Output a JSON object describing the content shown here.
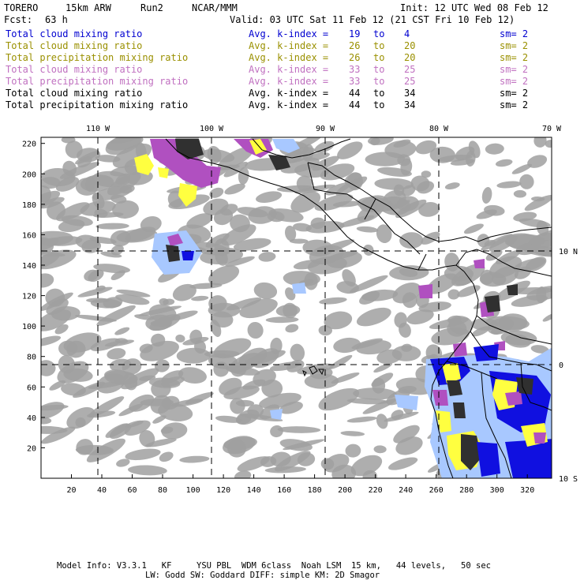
{
  "header": {
    "model": "TORERO",
    "resolution": "15km ARW",
    "run": "Run2",
    "org": "NCAR/MMM",
    "init": "Init: 12 UTC Wed 08 Feb 12",
    "fcst_label": "Fcst:",
    "fcst_value": "63 h",
    "valid": "Valid: 03 UTC Sat 11 Feb 12 (21 CST Fri 10 Feb 12)"
  },
  "legend": [
    {
      "field": "Total cloud mixing ratio",
      "kindex": "Avg. k-index =",
      "from": "19",
      "to_word": "to",
      "to": "4",
      "sm": "sm= 2",
      "color": "#0000d0"
    },
    {
      "field": "Total cloud mixing ratio",
      "kindex": "Avg. k-index =",
      "from": "26",
      "to_word": "to",
      "to": "20",
      "sm": "sm= 2",
      "color": "#9a9000"
    },
    {
      "field": "Total precipitation mixing ratio",
      "kindex": "Avg. k-index =",
      "from": "26",
      "to_word": "to",
      "to": "20",
      "sm": "sm= 2",
      "color": "#9a9000"
    },
    {
      "field": "Total cloud mixing ratio",
      "kindex": "Avg. k-index =",
      "from": "33",
      "to_word": "to",
      "to": "25",
      "sm": "sm= 2",
      "color": "#c070c0"
    },
    {
      "field": "Total precipitation mixing ratio",
      "kindex": "Avg. k-index =",
      "from": "33",
      "to_word": "to",
      "to": "25",
      "sm": "sm= 2",
      "color": "#c070c0"
    },
    {
      "field": "Total cloud mixing ratio",
      "kindex": "Avg. k-index =",
      "from": "44",
      "to_word": "to",
      "to": "34",
      "sm": "sm= 2",
      "color": "#000000"
    },
    {
      "field": "Total precipitation mixing ratio",
      "kindex": "Avg. k-index =",
      "from": "44",
      "to_word": "to",
      "to": "34",
      "sm": "sm= 2",
      "color": "#000000"
    }
  ],
  "map": {
    "lon_labels": [
      "110 W",
      "100 W",
      "90 W",
      "80 W",
      "70 W"
    ],
    "lat_labels": [
      "10 N",
      "0",
      "10 S"
    ],
    "x_ticks": [
      "20",
      "40",
      "60",
      "80",
      "100",
      "120",
      "140",
      "160",
      "180",
      "200",
      "220",
      "240",
      "260",
      "280",
      "300",
      "320"
    ],
    "y_ticks": [
      "20",
      "40",
      "60",
      "80",
      "100",
      "120",
      "140",
      "160",
      "180",
      "200",
      "220"
    ],
    "colors": {
      "gray": "#a0a0a0",
      "dark": "#303030",
      "blue": "#1010e0",
      "lightblue": "#a8c8ff",
      "yellow": "#ffff40",
      "purple": "#b050c0"
    }
  },
  "footer": {
    "line1": "Model Info: V3.3.1   KF     YSU PBL  WDM 6class  Noah LSM  15 km,   44 levels,   50 sec",
    "line2": "LW: Godd SW: Goddard DIFF: simple KM: 2D Smagor"
  }
}
